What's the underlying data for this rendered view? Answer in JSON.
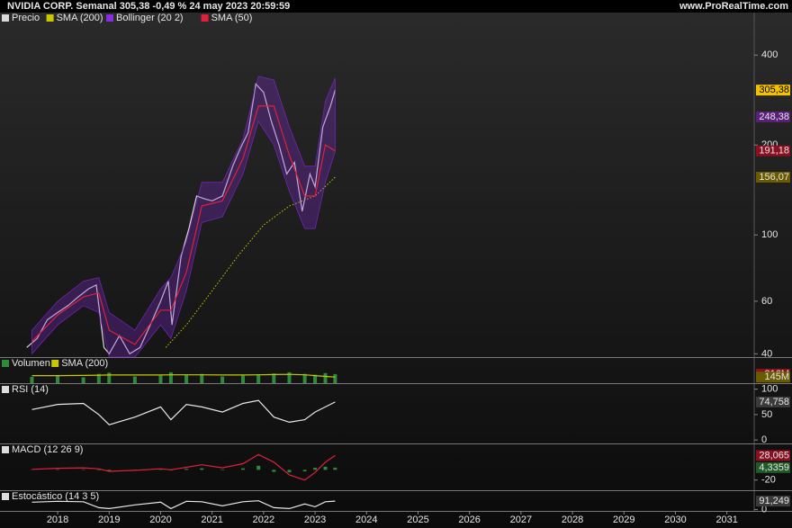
{
  "chart_data": [
    {
      "type": "line",
      "title": "NVIDIA CORP. Semanal 305,38 -0,49 % 24 may 2023 20:59:59",
      "source": "www.ProRealTime.com",
      "log_y": true,
      "xlim": [
        2016.88,
        2031.53
      ],
      "xticks": [
        2018,
        2019,
        2020,
        2021,
        2022,
        2023,
        2024,
        2025,
        2026,
        2027,
        2028,
        2029,
        2030,
        2031
      ],
      "ylim": [
        39,
        555
      ],
      "yticks": [
        40,
        60,
        100,
        200,
        400
      ],
      "series": [
        {
          "name": "Precio",
          "color": "#d9d9d9",
          "style": "line",
          "x": [
            2017.4,
            2017.6,
            2017.8,
            2018.0,
            2018.2,
            2018.4,
            2018.6,
            2018.75,
            2018.9,
            2019.0,
            2019.2,
            2019.4,
            2019.6,
            2019.8,
            2020.0,
            2020.15,
            2020.22,
            2020.4,
            2020.55,
            2020.7,
            2020.85,
            2021.0,
            2021.2,
            2021.4,
            2021.55,
            2021.7,
            2021.85,
            2022.0,
            2022.15,
            2022.3,
            2022.45,
            2022.6,
            2022.75,
            2022.9,
            2023.0,
            2023.15,
            2023.3,
            2023.39
          ],
          "values": [
            42,
            45,
            52,
            55,
            58,
            62,
            66,
            68,
            42,
            40,
            46,
            40,
            42,
            50,
            60,
            70,
            50,
            85,
            105,
            135,
            132,
            130,
            135,
            170,
            195,
            220,
            320,
            300,
            240,
            200,
            160,
            175,
            120,
            160,
            145,
            230,
            270,
            305.38
          ]
        },
        {
          "name": "SMA (200)",
          "color": "#c8c800",
          "style": "dotted",
          "x": [
            2020.1,
            2020.5,
            2021.0,
            2021.5,
            2022.0,
            2022.5,
            2023.0,
            2023.39
          ],
          "values": [
            42,
            50,
            65,
            85,
            108,
            125,
            135,
            156.07
          ]
        },
        {
          "name": "Bollinger (20 2)",
          "color": "#8a2be2",
          "style": "band",
          "x": [
            2017.5,
            2018.0,
            2018.5,
            2018.8,
            2019.0,
            2019.5,
            2020.0,
            2020.2,
            2020.5,
            2020.8,
            2021.2,
            2021.6,
            2021.9,
            2022.2,
            2022.5,
            2022.8,
            2023.0,
            2023.2,
            2023.39
          ],
          "upper": [
            48,
            60,
            70,
            72,
            55,
            48,
            66,
            72,
            95,
            150,
            150,
            210,
            340,
            330,
            230,
            170,
            170,
            280,
            335
          ],
          "lower": [
            40,
            50,
            58,
            55,
            39,
            39,
            50,
            45,
            65,
            110,
            115,
            160,
            240,
            200,
            140,
            105,
            105,
            150,
            190
          ]
        },
        {
          "name": "SMA (50)",
          "color": "#e0203a",
          "style": "line",
          "x": [
            2017.5,
            2018.0,
            2018.5,
            2018.8,
            2019.0,
            2019.5,
            2020.0,
            2020.2,
            2020.5,
            2020.8,
            2021.2,
            2021.6,
            2021.9,
            2022.2,
            2022.5,
            2022.8,
            2023.0,
            2023.2,
            2023.39
          ],
          "values": [
            44,
            54,
            62,
            64,
            48,
            43,
            56,
            56,
            75,
            125,
            130,
            180,
            270,
            270,
            185,
            135,
            135,
            200,
            191.18
          ]
        }
      ],
      "price_labels": [
        {
          "value": 305.38,
          "label": "305,38",
          "color": "#f2c200"
        },
        {
          "value": 248.38,
          "label": "248,38",
          "color": "#5a1f7a"
        },
        {
          "value": 191.18,
          "label": "191,18",
          "color": "#8a1020"
        },
        {
          "value": 156.07,
          "label": "156,07",
          "color": "#6a5a00"
        }
      ]
    },
    {
      "type": "bar",
      "ylim": [
        0,
        600
      ],
      "series": [
        {
          "name": "Volumen",
          "color": "#2e8b3a",
          "style": "bar",
          "x": [
            2017.5,
            2018.0,
            2018.5,
            2018.8,
            2019.0,
            2019.5,
            2020.0,
            2020.2,
            2020.5,
            2020.8,
            2021.2,
            2021.6,
            2021.9,
            2022.2,
            2022.5,
            2022.8,
            2023.0,
            2023.2,
            2023.39
          ],
          "values": [
            150,
            180,
            140,
            220,
            250,
            160,
            180,
            260,
            200,
            220,
            160,
            180,
            210,
            230,
            260,
            220,
            200,
            240,
            216
          ]
        },
        {
          "name": "SMA (200)",
          "color": "#c8c800",
          "style": "line",
          "x": [
            2017.5,
            2018.0,
            2018.5,
            2018.8,
            2019.0,
            2019.5,
            2020.0,
            2020.2,
            2020.5,
            2020.8,
            2021.2,
            2021.6,
            2021.9,
            2022.2,
            2022.5,
            2022.8,
            2023.0,
            2023.2,
            2023.39
          ],
          "values": [
            180,
            180,
            185,
            190,
            195,
            195,
            195,
            200,
            200,
            200,
            195,
            195,
            200,
            205,
            210,
            200,
            180,
            160,
            145
          ]
        }
      ],
      "price_labels": [
        {
          "value": 216,
          "label": "216M",
          "color": "#8a1020"
        },
        {
          "value": 145,
          "label": "145M",
          "color": "#6a5a00"
        }
      ]
    },
    {
      "type": "line",
      "title": "RSI (14)",
      "ylim": [
        -5,
        110
      ],
      "yticks": [
        0,
        50,
        100
      ],
      "series": [
        {
          "color": "#e8e8e8",
          "style": "line",
          "x": [
            2017.5,
            2018.0,
            2018.5,
            2018.8,
            2019.0,
            2019.5,
            2020.0,
            2020.2,
            2020.5,
            2020.8,
            2021.2,
            2021.6,
            2021.9,
            2022.2,
            2022.5,
            2022.8,
            2023.0,
            2023.2,
            2023.39
          ],
          "values": [
            60,
            70,
            72,
            50,
            30,
            45,
            65,
            40,
            70,
            65,
            55,
            72,
            78,
            45,
            35,
            40,
            55,
            65,
            74.758
          ]
        }
      ],
      "price_labels": [
        {
          "value": 74.758,
          "label": "74,758",
          "color": "#3a3a3a"
        }
      ]
    },
    {
      "type": "line",
      "title": "MACD (12 26 9)",
      "ylim": [
        -40,
        50
      ],
      "yticks": [
        -20
      ],
      "series": [
        {
          "color": "#2e8b3a",
          "style": "bar",
          "x": [
            2017.5,
            2018.0,
            2018.5,
            2018.8,
            2019.0,
            2019.5,
            2020.0,
            2020.2,
            2020.5,
            2020.8,
            2021.2,
            2021.6,
            2021.9,
            2022.2,
            2022.5,
            2022.8,
            2023.0,
            2023.2,
            2023.39
          ],
          "values": [
            0.5,
            1,
            1,
            -1,
            -2,
            0.5,
            1,
            -1,
            2,
            3,
            -1,
            3,
            8,
            -4,
            -5,
            -3,
            4,
            6,
            4.3359
          ]
        },
        {
          "color": "#e0203a",
          "style": "line",
          "x": [
            2017.5,
            2018.0,
            2018.5,
            2018.8,
            2019.0,
            2019.5,
            2020.0,
            2020.2,
            2020.5,
            2020.8,
            2021.2,
            2021.6,
            2021.9,
            2022.2,
            2022.5,
            2022.8,
            2023.0,
            2023.2,
            2023.39
          ],
          "values": [
            1,
            3,
            4,
            2,
            -3,
            -1,
            2,
            0,
            5,
            10,
            4,
            12,
            30,
            15,
            -10,
            -20,
            -5,
            15,
            28.065
          ]
        }
      ],
      "price_labels": [
        {
          "value": 28.065,
          "label": "28,065",
          "color": "#8a1020"
        },
        {
          "value": 4.3359,
          "label": "4,3359",
          "color": "#1f5a28"
        }
      ]
    },
    {
      "type": "line",
      "title": "Estocástico (14 3 5)",
      "ylim": [
        -15,
        200
      ],
      "yticks": [
        0
      ],
      "series": [
        {
          "color": "#e8e8e8",
          "style": "line",
          "x": [
            2017.5,
            2018.0,
            2018.5,
            2018.8,
            2019.0,
            2019.5,
            2020.0,
            2020.2,
            2020.5,
            2020.8,
            2021.2,
            2021.6,
            2021.9,
            2022.2,
            2022.5,
            2022.8,
            2023.0,
            2023.2,
            2023.39
          ],
          "values": [
            80,
            90,
            85,
            20,
            10,
            50,
            80,
            10,
            90,
            85,
            40,
            85,
            95,
            20,
            10,
            60,
            30,
            85,
            91.249
          ]
        }
      ],
      "price_labels": [
        {
          "value": 91.249,
          "label": "91,249",
          "color": "#3a3a3a"
        }
      ]
    }
  ]
}
